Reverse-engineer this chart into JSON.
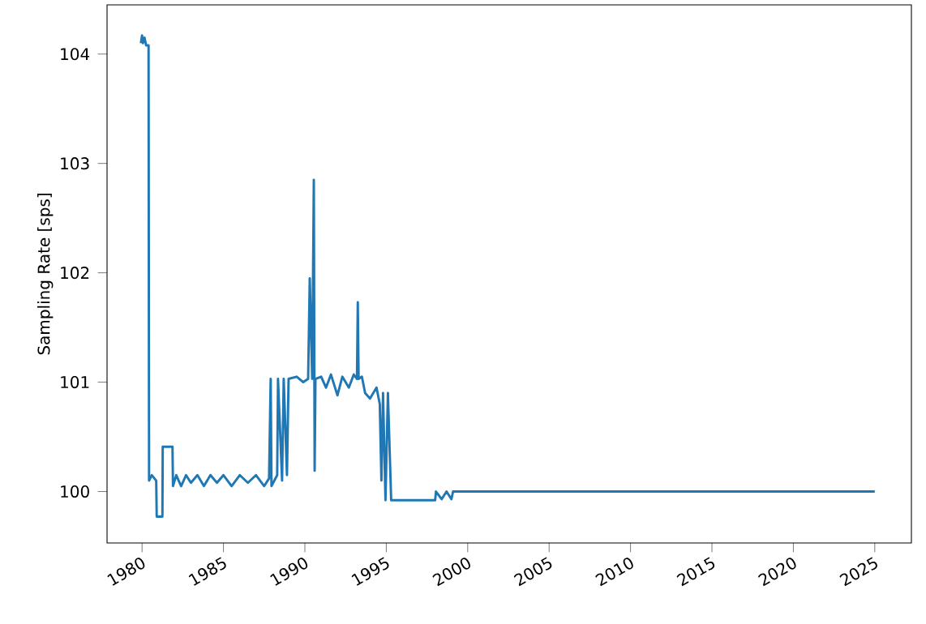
{
  "chart_data": {
    "type": "line",
    "ylabel": "Sampling Rate [sps]",
    "xlim": [
      1977.85,
      2027.25
    ],
    "ylim": [
      99.53,
      104.45
    ],
    "xticks": [
      1980,
      1985,
      1990,
      1995,
      2000,
      2005,
      2010,
      2015,
      2020,
      2025
    ],
    "yticks": [
      100,
      101,
      102,
      103,
      104
    ],
    "grid": false,
    "marker": "none",
    "line_style": "solid",
    "series": [
      {
        "color": "#1f77b4",
        "x": [
          1979.93,
          1980.0,
          1980.05,
          1980.15,
          1980.25,
          1980.4,
          1980.43,
          1980.6,
          1980.87,
          1980.9,
          1981.25,
          1981.27,
          1981.87,
          1981.9,
          1982.1,
          1982.4,
          1982.7,
          1983.0,
          1983.4,
          1983.8,
          1984.2,
          1984.6,
          1985.0,
          1985.5,
          1986.0,
          1986.5,
          1987.0,
          1987.5,
          1987.8,
          1987.9,
          1987.95,
          1988.3,
          1988.35,
          1988.6,
          1988.7,
          1988.9,
          1989.0,
          1989.5,
          1989.9,
          1990.2,
          1990.3,
          1990.45,
          1990.55,
          1990.6,
          1990.65,
          1991.0,
          1991.3,
          1991.6,
          1992.0,
          1992.3,
          1992.7,
          1993.0,
          1993.2,
          1993.25,
          1993.3,
          1993.5,
          1993.7,
          1994.0,
          1994.4,
          1994.6,
          1994.7,
          1994.8,
          1994.95,
          1995.1,
          1995.3,
          1996.0,
          1997.0,
          1998.0,
          1998.05,
          1998.4,
          1998.7,
          1999.0,
          1999.1,
          2010.0,
          2025.0
        ],
        "values": [
          104.1,
          104.17,
          104.1,
          104.15,
          104.08,
          104.08,
          100.1,
          100.15,
          100.1,
          99.77,
          99.77,
          100.41,
          100.41,
          100.05,
          100.15,
          100.05,
          100.15,
          100.08,
          100.15,
          100.05,
          100.15,
          100.08,
          100.15,
          100.05,
          100.15,
          100.08,
          100.15,
          100.05,
          100.12,
          101.03,
          100.05,
          100.15,
          101.03,
          100.1,
          101.03,
          100.15,
          101.03,
          101.05,
          101.0,
          101.03,
          101.95,
          101.03,
          102.85,
          100.19,
          101.03,
          101.05,
          100.95,
          101.07,
          100.88,
          101.05,
          100.95,
          101.07,
          101.03,
          101.73,
          101.03,
          101.05,
          100.9,
          100.85,
          100.95,
          100.8,
          100.1,
          100.9,
          99.92,
          100.9,
          99.92,
          99.92,
          99.92,
          99.92,
          100.0,
          99.93,
          100.0,
          99.93,
          100.0,
          100.0,
          100.0
        ]
      }
    ]
  }
}
